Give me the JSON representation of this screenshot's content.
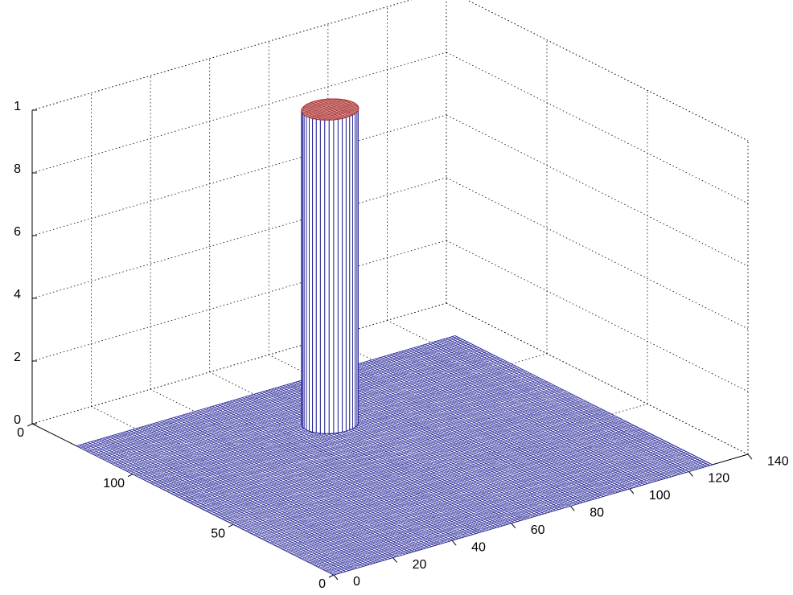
{
  "chart_data": {
    "type": "surface",
    "xlim": [
      0,
      140
    ],
    "xticks": [
      0,
      20,
      40,
      60,
      80,
      100,
      120,
      140
    ],
    "ylim": [
      0,
      150
    ],
    "yticks": [
      0,
      50,
      100,
      {
        "value": 150,
        "label": "0"
      }
    ],
    "zlim": [
      0,
      1
    ],
    "zticks": [
      0,
      {
        "value": 0.2,
        "label": "2"
      },
      {
        "value": 0.4,
        "label": "4"
      },
      {
        "value": 0.6,
        "label": "6"
      },
      {
        "value": 0.8,
        "label": "8"
      },
      1
    ],
    "grid": true,
    "surface_extent": {
      "x": [
        0,
        128
      ],
      "y": [
        0,
        128
      ]
    },
    "base_z": 0,
    "peak": {
      "x": 64,
      "y": 96,
      "radius": 8,
      "z": 1
    },
    "mesh_color": "#2a2a9a",
    "top_color": "#d89a9a",
    "top_edge_color": "#a83030"
  }
}
